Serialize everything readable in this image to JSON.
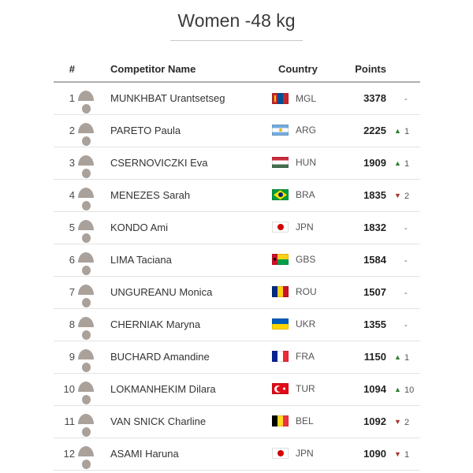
{
  "page": {
    "title": "Women -48 kg"
  },
  "table": {
    "headers": {
      "rank": "#",
      "name": "Competitor Name",
      "country": "Country",
      "points": "Points"
    },
    "rows": [
      {
        "rank": "1",
        "name": "MUNKHBAT Urantsetseg",
        "country_code": "MGL",
        "points": "3378",
        "change_dir": "none",
        "change": "-"
      },
      {
        "rank": "2",
        "name": "PARETO Paula",
        "country_code": "ARG",
        "points": "2225",
        "change_dir": "up",
        "change": "1"
      },
      {
        "rank": "3",
        "name": "CSERNOVICZKI Eva",
        "country_code": "HUN",
        "points": "1909",
        "change_dir": "up",
        "change": "1"
      },
      {
        "rank": "4",
        "name": "MENEZES Sarah",
        "country_code": "BRA",
        "points": "1835",
        "change_dir": "down",
        "change": "2"
      },
      {
        "rank": "5",
        "name": "KONDO Ami",
        "country_code": "JPN",
        "points": "1832",
        "change_dir": "none",
        "change": "-"
      },
      {
        "rank": "6",
        "name": "LIMA Taciana",
        "country_code": "GBS",
        "points": "1584",
        "change_dir": "none",
        "change": "-"
      },
      {
        "rank": "7",
        "name": "UNGUREANU Monica",
        "country_code": "ROU",
        "points": "1507",
        "change_dir": "none",
        "change": "-"
      },
      {
        "rank": "8",
        "name": "CHERNIAK Maryna",
        "country_code": "UKR",
        "points": "1355",
        "change_dir": "none",
        "change": "-"
      },
      {
        "rank": "9",
        "name": "BUCHARD Amandine",
        "country_code": "FRA",
        "points": "1150",
        "change_dir": "up",
        "change": "1"
      },
      {
        "rank": "10",
        "name": "LOKMANHEKIM Dilara",
        "country_code": "TUR",
        "points": "1094",
        "change_dir": "up",
        "change": "10"
      },
      {
        "rank": "11",
        "name": "VAN SNICK Charline",
        "country_code": "BEL",
        "points": "1092",
        "change_dir": "down",
        "change": "2"
      },
      {
        "rank": "12",
        "name": "ASAMI Haruna",
        "country_code": "JPN",
        "points": "1090",
        "change_dir": "down",
        "change": "1"
      }
    ]
  },
  "icons": {
    "up_arrow": "▲",
    "down_arrow": "▼",
    "no_change": "-"
  },
  "colors": {
    "up_arrow": "#2e7d32",
    "down_arrow": "#a93226",
    "title_text": "#3b3b3b",
    "points_text": "#222222"
  }
}
